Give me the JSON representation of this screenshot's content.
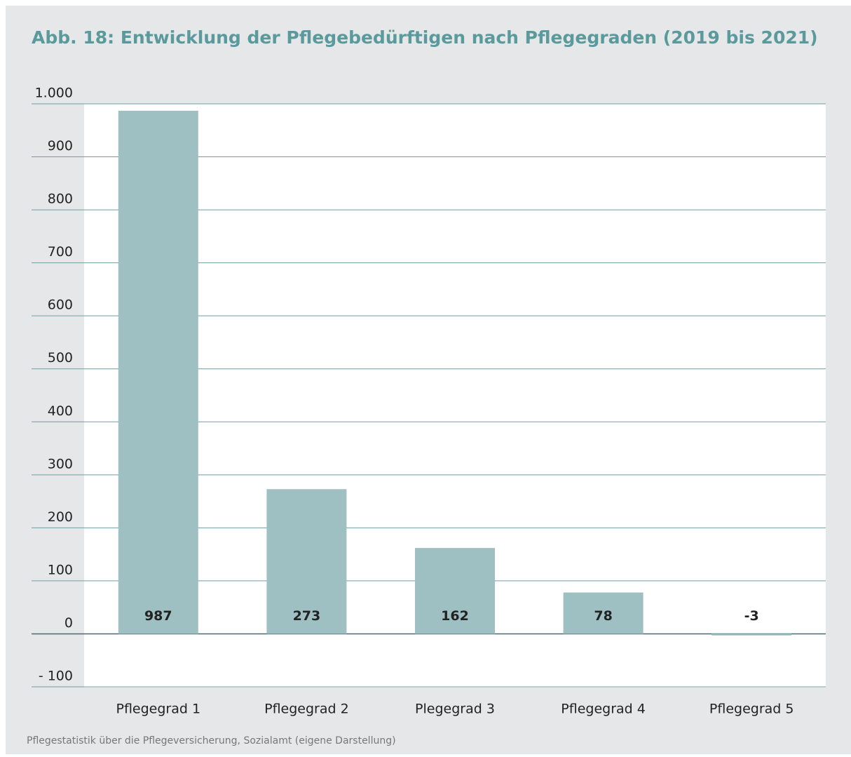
{
  "chart_data": {
    "type": "bar",
    "title": "Abb. 18: Entwicklung der Pflegebedürftigen nach Pflegegraden (2019 bis 2021)",
    "source": "Pflegestatistik über die Pflegeversicherung, Sozialamt (eigene Darstellung)",
    "categories": [
      "Pflegegrad 1",
      "Pflegegrad 2",
      "Plegegrad 3",
      "Pflegegrad 4",
      "Pflegegrad 5"
    ],
    "values": [
      987,
      273,
      162,
      78,
      -3
    ],
    "color": "#9fc0c3",
    "ylim": [
      -100,
      1000
    ],
    "yticks": [
      {
        "value": -100,
        "label": "- 100"
      },
      0,
      100,
      200,
      300,
      400,
      500,
      600,
      700,
      800,
      900,
      {
        "value": 1000,
        "label": "1.000"
      }
    ],
    "grid": true
  }
}
